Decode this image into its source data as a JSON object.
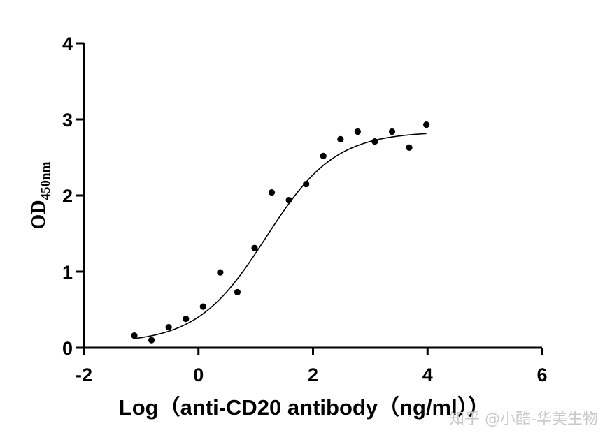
{
  "chart_data": {
    "type": "scatter",
    "xlabel": "Log（anti-CD20 antibody（ng/ml））",
    "ylabel": "OD",
    "ylabel_subscript": "450nm",
    "xlim": [
      -2,
      6
    ],
    "ylim": [
      0,
      4
    ],
    "x_ticks": [
      "-2",
      "0",
      "2",
      "4",
      "6"
    ],
    "y_ticks": [
      "0",
      "1",
      "2",
      "3",
      "4"
    ],
    "grid": false,
    "points": [
      {
        "x": -1.12,
        "y": 0.16
      },
      {
        "x": -0.82,
        "y": 0.1
      },
      {
        "x": -0.52,
        "y": 0.27
      },
      {
        "x": -0.22,
        "y": 0.38
      },
      {
        "x": 0.08,
        "y": 0.54
      },
      {
        "x": 0.38,
        "y": 0.99
      },
      {
        "x": 0.68,
        "y": 0.73
      },
      {
        "x": 0.98,
        "y": 1.31
      },
      {
        "x": 1.28,
        "y": 2.04
      },
      {
        "x": 1.58,
        "y": 1.94
      },
      {
        "x": 1.88,
        "y": 2.15
      },
      {
        "x": 2.18,
        "y": 2.52
      },
      {
        "x": 2.48,
        "y": 2.74
      },
      {
        "x": 2.78,
        "y": 2.84
      },
      {
        "x": 3.08,
        "y": 2.71
      },
      {
        "x": 3.38,
        "y": 2.84
      },
      {
        "x": 3.68,
        "y": 2.63
      },
      {
        "x": 3.98,
        "y": 2.93
      }
    ],
    "fit_curve": {
      "model": "four-parameter logistic",
      "bottom": 0.06,
      "top": 2.84,
      "log_ec50": 1.18,
      "hill_slope": 0.72,
      "x_range": [
        -1.12,
        3.98
      ]
    }
  },
  "watermark": "知乎 @小酷-华美生物"
}
